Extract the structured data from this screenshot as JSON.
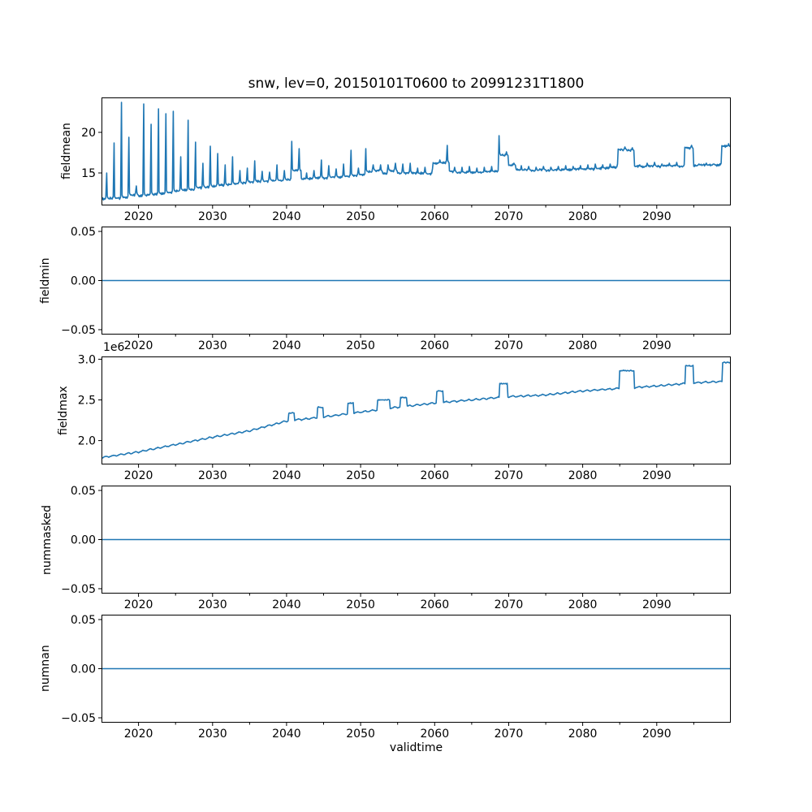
{
  "figure": {
    "title": "snw, lev=0, 20150101T0600 to 20991231T1800",
    "xlabel": "validtime",
    "line_color": "#1f77b4",
    "xlim": [
      2015,
      2100
    ],
    "xticks": [
      2020,
      2030,
      2040,
      2050,
      2060,
      2070,
      2080,
      2090
    ],
    "xticks_minor": [
      2025,
      2035,
      2045,
      2055,
      2065,
      2075,
      2085,
      2095
    ]
  },
  "chart_data": [
    {
      "type": "line",
      "ylabel": "fieldmean",
      "ylim": [
        11.0,
        24.3
      ],
      "yticks": [
        [
          20,
          "20"
        ],
        [
          15,
          "15"
        ]
      ],
      "years_start": 2015,
      "annual_base": [
        11.8,
        11.9,
        11.9,
        12.0,
        12.3,
        12.2,
        12.3,
        12.4,
        12.5,
        12.6,
        12.8,
        12.9,
        13.0,
        13.2,
        13.3,
        13.4,
        13.5,
        13.6,
        13.7,
        13.8,
        13.9,
        14.0,
        14.0,
        14.1,
        14.1,
        14.2,
        15.3,
        14.3,
        14.3,
        14.4,
        14.4,
        14.5,
        14.5,
        14.6,
        14.7,
        14.8,
        15.2,
        15.3,
        14.9,
        15.3,
        15.0,
        15.0,
        15.0,
        15.0,
        14.9,
        16.2,
        16.3,
        15.2,
        15.1,
        15.1,
        15.1,
        15.1,
        15.2,
        15.2,
        17.2,
        16.0,
        15.4,
        15.4,
        15.3,
        15.4,
        15.3,
        15.4,
        15.4,
        15.4,
        15.5,
        15.5,
        15.5,
        15.6,
        15.6,
        15.7,
        17.9,
        17.8,
        15.8,
        15.8,
        15.9,
        15.8,
        15.9,
        15.9,
        15.8,
        18.1,
        15.9,
        16.0,
        16.0,
        16.0,
        18.3
      ],
      "annual_peak": [
        15.0,
        18.7,
        23.7,
        19.4,
        13.4,
        23.5,
        21.0,
        22.9,
        22.3,
        22.6,
        17.0,
        21.5,
        18.8,
        16.2,
        18.3,
        17.4,
        16.0,
        17.0,
        15.3,
        15.6,
        16.5,
        15.2,
        15.1,
        16.0,
        15.3,
        18.9,
        18.0,
        15.0,
        15.3,
        16.6,
        15.9,
        15.5,
        16.1,
        17.8,
        15.6,
        18.0,
        16.0,
        16.0,
        16.0,
        16.2,
        16.1,
        16.2,
        15.6,
        15.7,
        15.5,
        16.6,
        18.4,
        15.7,
        15.7,
        15.8,
        15.6,
        15.7,
        15.8,
        19.6,
        17.6,
        16.2,
        15.9,
        15.8,
        15.7,
        15.8,
        15.7,
        15.8,
        15.9,
        15.8,
        15.9,
        16.0,
        16.1,
        16.0,
        16.1,
        16.1,
        18.2,
        18.1,
        16.0,
        16.2,
        16.3,
        16.1,
        16.2,
        16.3,
        16.0,
        18.4,
        16.1,
        16.2,
        16.1,
        16.2,
        18.6
      ]
    },
    {
      "type": "line",
      "ylabel": "fieldmin",
      "ylim": [
        -0.055,
        0.055
      ],
      "yticks": [
        [
          0.05,
          "0.05"
        ],
        [
          0.0,
          "0.00"
        ],
        [
          -0.05,
          "−0.05"
        ]
      ],
      "constant": 0
    },
    {
      "type": "line",
      "ylabel": "fieldmax",
      "offset_label": "1e6",
      "ylim": [
        1.706,
        3.034
      ],
      "yticks": [
        [
          3.0,
          "3.0"
        ],
        [
          2.5,
          "2.5"
        ],
        [
          2.0,
          "2.0"
        ]
      ],
      "trend": {
        "years": [
          2015,
          2020,
          2025,
          2030,
          2035,
          2040,
          2045,
          2050,
          2055,
          2060,
          2065,
          2070,
          2075,
          2080,
          2085,
          2090,
          2095,
          2100
        ],
        "values_1e6": [
          1.79,
          1.86,
          1.95,
          2.04,
          2.12,
          2.24,
          2.29,
          2.35,
          2.41,
          2.46,
          2.5,
          2.54,
          2.56,
          2.61,
          2.64,
          2.67,
          2.71,
          2.73
        ]
      },
      "excursions": [
        [
          2040.2,
          2041.0,
          2.34
        ],
        [
          2044.1,
          2044.9,
          2.41
        ],
        [
          2048.2,
          2049.0,
          2.46
        ],
        [
          2052.2,
          2053.9,
          2.5
        ],
        [
          2055.3,
          2056.2,
          2.53
        ],
        [
          2060.2,
          2061.1,
          2.61
        ],
        [
          2068.7,
          2069.8,
          2.7
        ],
        [
          2084.9,
          2086.9,
          2.86
        ],
        [
          2093.8,
          2094.9,
          2.92
        ],
        [
          2098.8,
          2100.0,
          2.96
        ]
      ]
    },
    {
      "type": "line",
      "ylabel": "nummasked",
      "ylim": [
        -0.055,
        0.055
      ],
      "yticks": [
        [
          0.05,
          "0.05"
        ],
        [
          0.0,
          "0.00"
        ],
        [
          -0.05,
          "−0.05"
        ]
      ],
      "constant": 0
    },
    {
      "type": "line",
      "ylabel": "numnan",
      "ylim": [
        -0.055,
        0.055
      ],
      "yticks": [
        [
          0.05,
          "0.05"
        ],
        [
          0.0,
          "0.00"
        ],
        [
          -0.05,
          "−0.05"
        ]
      ],
      "constant": 0
    }
  ]
}
